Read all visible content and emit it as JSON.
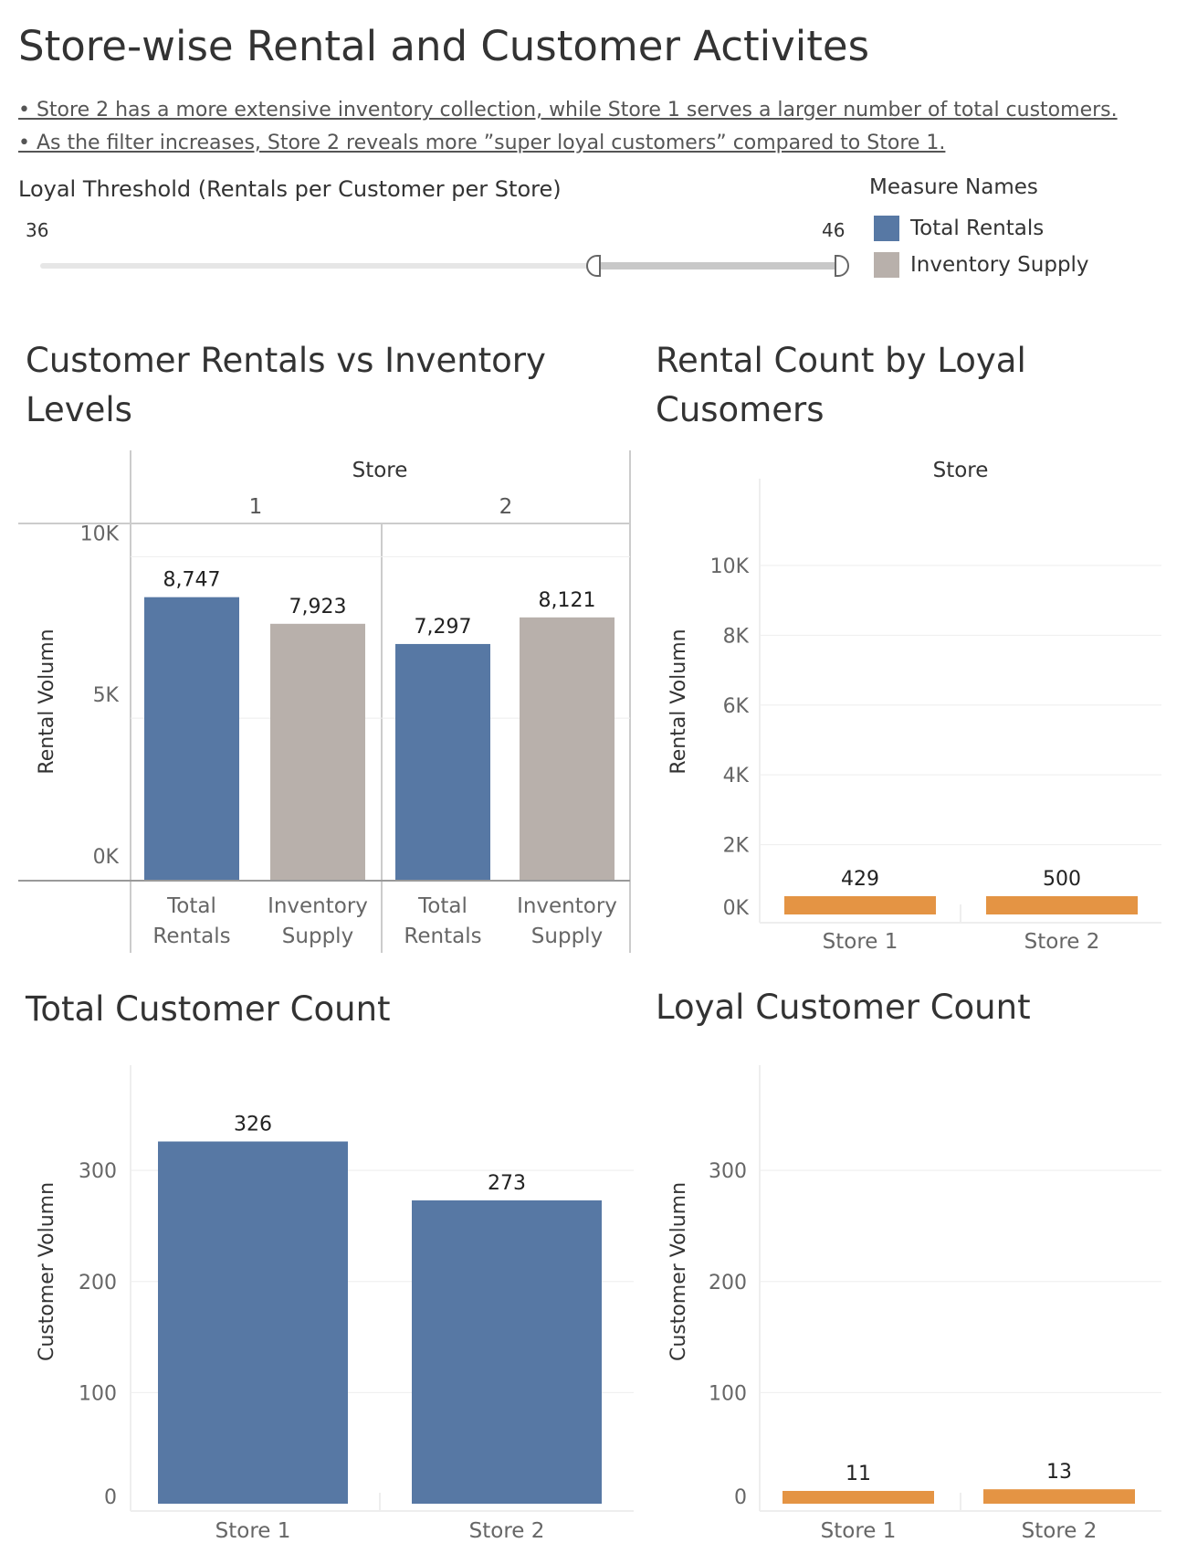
{
  "title": "Store-wise Rental and Customer Activites",
  "bullets": [
    "• Store 2 has a more extensive inventory collection, while Store 1 serves a larger number of total customers.",
    "• As the filter increases, Store 2 reveals more ”super loyal customers” compared to Store 1."
  ],
  "filter": {
    "title": "Loyal Threshold (Rentals per Customer per Store)",
    "min_label": "36",
    "max_label": "46",
    "selected_fraction": 0.69
  },
  "legend": {
    "title": "Measure Names",
    "items": [
      {
        "label": "Total Rentals",
        "color": "#5778a4"
      },
      {
        "label": "Inventory Supply",
        "color": "#b8b0ab"
      }
    ]
  },
  "colors": {
    "blue": "#5778a4",
    "grey": "#b8b0ab",
    "orange": "#e49444"
  },
  "chart_data": [
    {
      "type": "bar",
      "title_line1": "Customer Rentals vs Inventory",
      "title_line2": "Levels",
      "column_header": "Store",
      "groups": [
        {
          "store": "1",
          "bars": [
            {
              "label_line1": "Total",
              "label_line2": "Rentals",
              "value": 8747,
              "value_label": "8,747"
            },
            {
              "label_line1": "Inventory",
              "label_line2": "Supply",
              "value": 7923,
              "value_label": "7,923"
            }
          ]
        },
        {
          "store": "2",
          "bars": [
            {
              "label_line1": "Total",
              "label_line2": "Rentals",
              "value": 7297,
              "value_label": "7,297"
            },
            {
              "label_line1": "Inventory",
              "label_line2": "Supply",
              "value": 8121,
              "value_label": "8,121"
            }
          ]
        }
      ],
      "ylabel": "Rental Volumn",
      "ylim": [
        0,
        11000
      ],
      "yticks": [
        0,
        5000,
        10000
      ],
      "ytick_labels": [
        "0K",
        "5K",
        "10K"
      ]
    },
    {
      "type": "bar",
      "title_line1": "Rental Count by Loyal",
      "title_line2": "Cusomers",
      "column_header": "Store",
      "categories": [
        "Store 1",
        "Store 2"
      ],
      "values": [
        429,
        500
      ],
      "value_labels": [
        "429",
        "500"
      ],
      "ylabel": "Rental Volumn",
      "ylim": [
        0,
        11700
      ],
      "yticks": [
        0,
        2000,
        4000,
        6000,
        8000,
        10000
      ],
      "ytick_labels": [
        "0K",
        "2K",
        "4K",
        "6K",
        "8K",
        "10K"
      ]
    },
    {
      "type": "bar",
      "title_line1": "Total Customer Count",
      "categories": [
        "Store 1",
        "Store 2"
      ],
      "values": [
        326,
        273
      ],
      "value_labels": [
        "326",
        "273"
      ],
      "ylabel": "Customer Volumn",
      "ylim": [
        0,
        370
      ],
      "yticks": [
        0,
        100,
        200,
        300
      ],
      "ytick_labels": [
        "0",
        "100",
        "200",
        "300"
      ]
    },
    {
      "type": "bar",
      "title_line1": "Loyal Customer Count",
      "categories": [
        "Store 1",
        "Store 2"
      ],
      "values": [
        11,
        13
      ],
      "value_labels": [
        "11",
        "13"
      ],
      "ylabel": "Customer Volumn",
      "ylim": [
        0,
        370
      ],
      "yticks": [
        0,
        100,
        200,
        300
      ],
      "ytick_labels": [
        "0",
        "100",
        "200",
        "300"
      ]
    }
  ]
}
